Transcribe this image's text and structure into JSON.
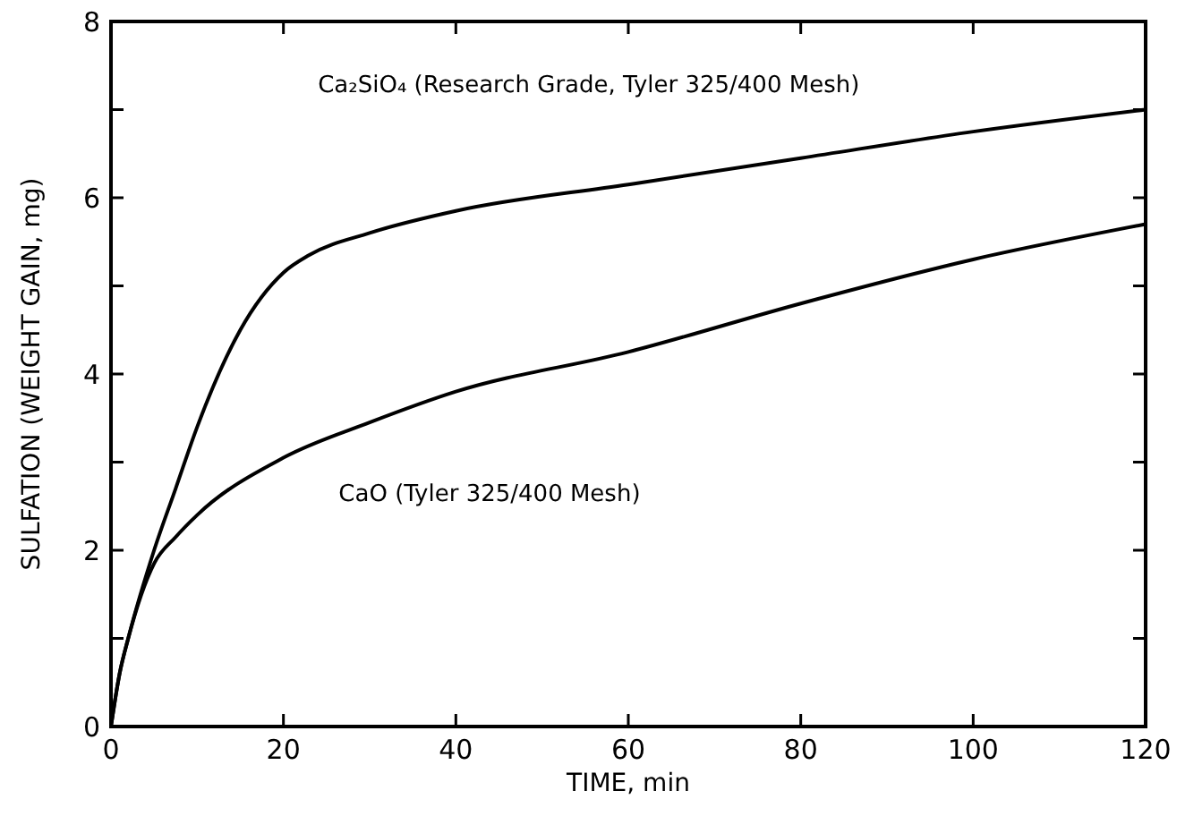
{
  "chart_data": {
    "type": "line",
    "xlabel": "TIME, min",
    "ylabel": "SULFATION (WEIGHT GAIN, mg)",
    "xlim": [
      0,
      120
    ],
    "ylim": [
      0,
      8
    ],
    "xticks": [
      0,
      20,
      40,
      60,
      80,
      100,
      120
    ],
    "yticks": [
      0,
      {
        "value": 1,
        "label": null
      },
      2,
      {
        "value": 3,
        "label": null
      },
      4,
      {
        "value": 5,
        "label": null
      },
      6,
      {
        "value": 7,
        "label": null
      },
      8
    ],
    "grid": false,
    "marker": "none",
    "line_style": "solid",
    "series": [
      {
        "name": "Ca₂SiO₄ (Research Grade, Tyler 325/400 Mesh)",
        "color": "#000000",
        "x": [
          0,
          1,
          2,
          5,
          7.5,
          10,
          15,
          20,
          23,
          30,
          40,
          60,
          80,
          100,
          120
        ],
        "values": [
          0,
          0.6,
          1.0,
          2.0,
          2.7,
          3.4,
          4.5,
          5.15,
          5.35,
          5.6,
          5.85,
          6.15,
          6.45,
          6.75,
          7.0
        ]
      },
      {
        "name": "CaO (Tyler 325/400 Mesh)",
        "color": "#000000",
        "x": [
          0,
          1,
          2,
          5,
          7.5,
          10,
          20,
          30,
          40,
          60,
          80,
          100,
          120
        ],
        "values": [
          0,
          0.6,
          1.0,
          1.85,
          2.15,
          2.4,
          3.05,
          3.45,
          3.8,
          4.25,
          4.8,
          5.3,
          5.7
        ]
      }
    ]
  }
}
